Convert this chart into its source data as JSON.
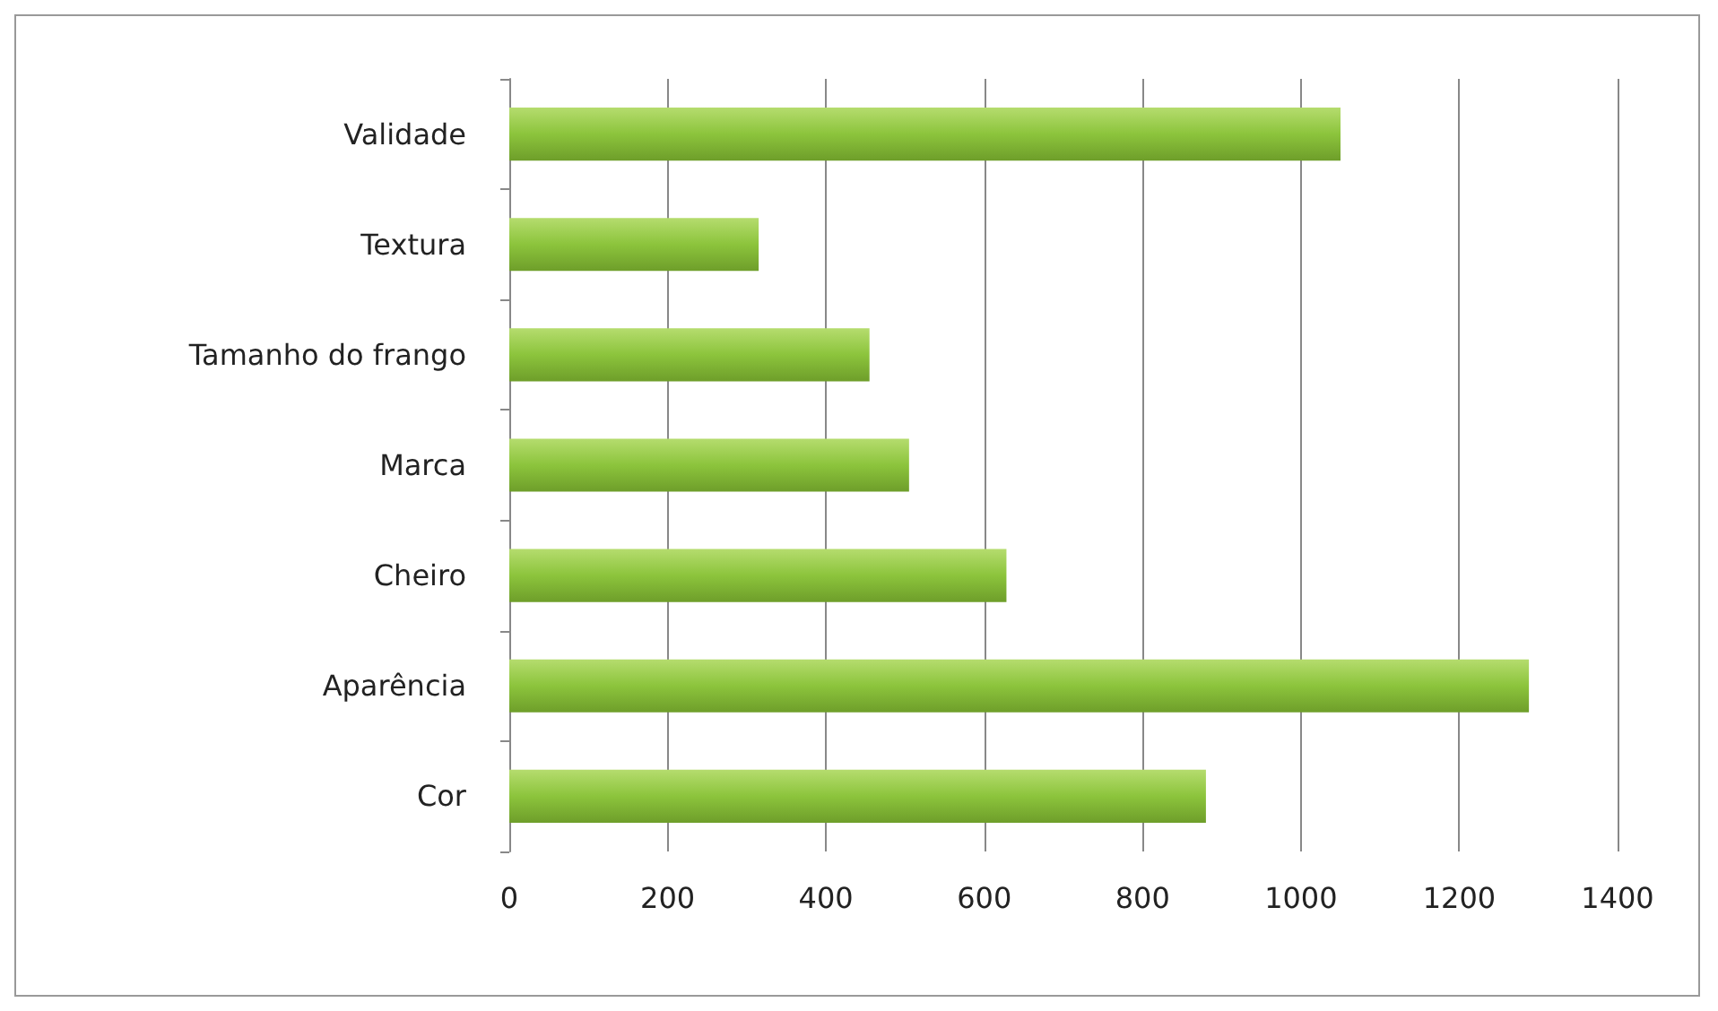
{
  "chart_data": {
    "type": "bar",
    "orientation": "horizontal",
    "categories": [
      "Validade",
      "Textura",
      "Tamanho do frango",
      "Marca",
      "Cheiro",
      "Aparência",
      "Cor"
    ],
    "values": [
      1050,
      315,
      455,
      505,
      628,
      1288,
      880
    ],
    "color": "#8cc43c",
    "xlim": [
      0,
      1400
    ],
    "xticks": [
      0,
      200,
      400,
      600,
      800,
      1000,
      1200,
      1400
    ],
    "grid": "x"
  }
}
